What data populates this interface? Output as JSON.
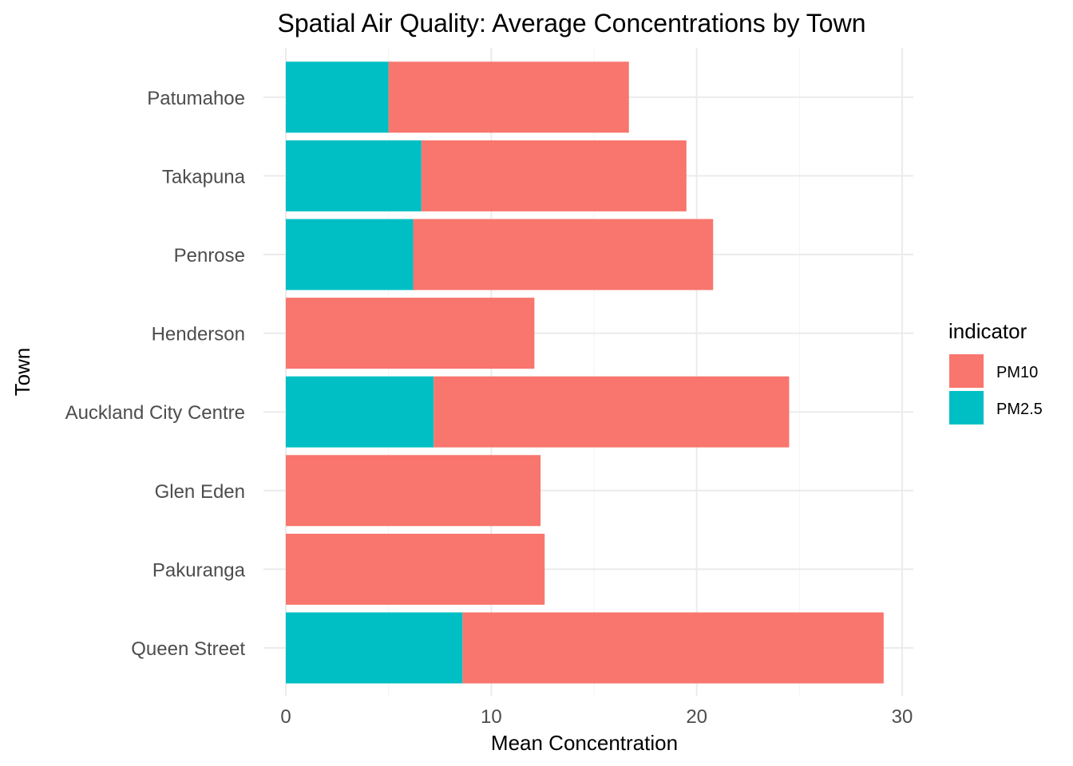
{
  "chart_data": {
    "type": "bar",
    "orientation": "horizontal",
    "stacked": true,
    "title": "Spatial Air Quality: Average Concentrations by Town",
    "xlabel": "Mean Concentration",
    "ylabel": "Town",
    "xlim": [
      0,
      30
    ],
    "xticks": [
      "0",
      "10",
      "20",
      "30"
    ],
    "grid": true,
    "legend": {
      "title": "indicator",
      "position": "right"
    },
    "categories": [
      "Queen Street",
      "Pakuranga",
      "Glen Eden",
      "Auckland City Centre",
      "Henderson",
      "Penrose",
      "Takapuna",
      "Patumahoe"
    ],
    "series": [
      {
        "name": "PM2.5",
        "color": "#00BFC4",
        "values": [
          8.6,
          0,
          0,
          7.2,
          0,
          6.2,
          6.6,
          5.0
        ]
      },
      {
        "name": "PM10",
        "color": "#F8766D",
        "values": [
          20.5,
          12.6,
          12.4,
          17.3,
          12.1,
          14.6,
          12.9,
          11.7
        ]
      }
    ],
    "legend_order": [
      "PM10",
      "PM2.5"
    ]
  }
}
